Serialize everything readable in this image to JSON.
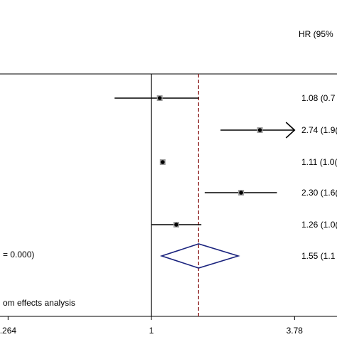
{
  "chart_data": {
    "type": "forest",
    "scale": "log",
    "header_label": "HR (95%",
    "null_line_value": 1,
    "pooled_line_value": 1.55,
    "x_ticks": [
      {
        "value": 0.264,
        "label": ".264"
      },
      {
        "value": 1,
        "label": "1"
      },
      {
        "value": 3.78,
        "label": "3.78"
      }
    ],
    "rows": [
      {
        "hr": 1.08,
        "lo": 0.71,
        "hi": 1.55,
        "text": "1.08 (0.7"
      },
      {
        "hr": 2.74,
        "lo": 1.9,
        "hi": 3.78,
        "arrow": true,
        "text": "2.74 (1.9("
      },
      {
        "hr": 1.11,
        "lo": 1.09,
        "hi": 1.13,
        "text": "1.11 (1.0("
      },
      {
        "hr": 2.3,
        "lo": 1.64,
        "hi": 3.21,
        "text": "2.30 (1.6("
      },
      {
        "hr": 1.26,
        "lo": 1.0,
        "hi": 1.59,
        "text": "1.26 (1.0("
      }
    ],
    "overall": {
      "hr": 1.55,
      "lo": 1.1,
      "hi": 2.24,
      "text": "1.55 (1.1",
      "heterogeneity_text": "= 0.000)"
    },
    "footnote": "om effects analysis"
  },
  "colors": {
    "diamond": "#1a237e",
    "pooled_line": "#8b1a1a",
    "ink": "#000000"
  }
}
